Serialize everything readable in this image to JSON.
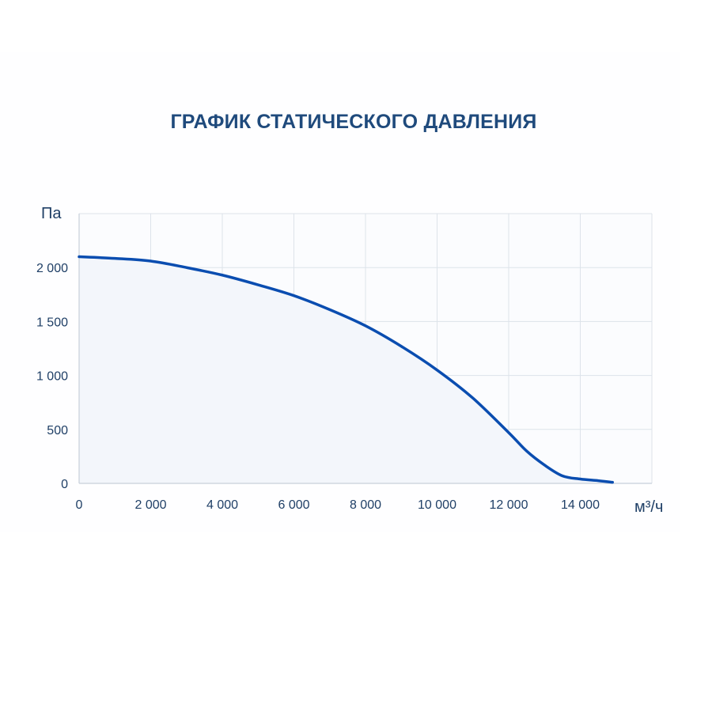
{
  "chart_data": {
    "type": "area",
    "title": "ГРАФИК СТАТИЧЕСКОГО ДАВЛЕНИЯ",
    "xlabel": "м³/ч",
    "ylabel": "Па",
    "xlim": [
      0,
      16000
    ],
    "ylim": [
      0,
      2500
    ],
    "x_ticks": [
      0,
      2000,
      4000,
      6000,
      8000,
      10000,
      12000,
      14000
    ],
    "x_tick_labels": [
      "0",
      "2 000",
      "4 000",
      "6 000",
      "8 000",
      "10 000",
      "12 000",
      "14 000"
    ],
    "y_ticks": [
      0,
      500,
      1000,
      1500,
      2000
    ],
    "y_tick_labels": [
      "0",
      "500",
      "1 000",
      "1 500",
      "2 000"
    ],
    "grid": true,
    "line_color": "#0a4db0",
    "fill_color": "#f3f6fb",
    "series": [
      {
        "name": "",
        "x": [
          0,
          1000,
          2000,
          3000,
          4000,
          5000,
          6000,
          7000,
          8000,
          9000,
          10000,
          11000,
          12000,
          12500,
          13000,
          13500,
          14000,
          14500,
          14900
        ],
        "y": [
          2100,
          2085,
          2060,
          2000,
          1930,
          1840,
          1740,
          1610,
          1460,
          1270,
          1050,
          790,
          470,
          300,
          170,
          70,
          40,
          25,
          10
        ]
      }
    ]
  }
}
